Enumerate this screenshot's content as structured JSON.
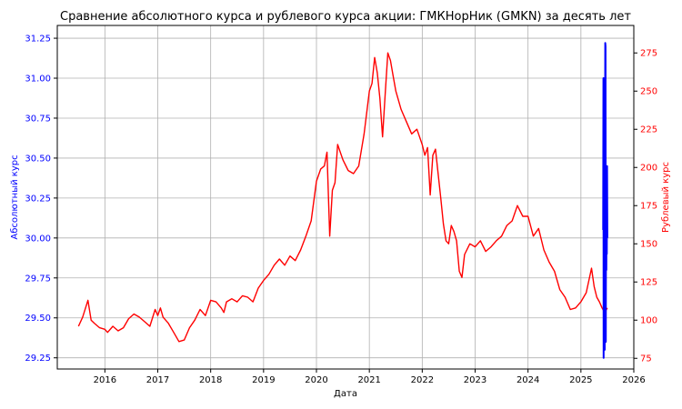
{
  "chart_data": {
    "type": "line",
    "title": "Сравнение абсолютного курса и рублевого курса акции: ГМКНорНик (GMKN) за десять лет",
    "xlabel": "Дата",
    "ylabel_left": "Абсолютный курс",
    "ylabel_right": "Рублевый курс",
    "xlim": [
      2015.1,
      2026.0
    ],
    "ylim_left": [
      29.18,
      31.33
    ],
    "ylim_right": [
      68,
      293
    ],
    "x_ticks": [
      2016,
      2017,
      2018,
      2019,
      2020,
      2021,
      2022,
      2023,
      2024,
      2025,
      2026
    ],
    "y_ticks_left": [
      "29.25",
      "29.50",
      "29.75",
      "30.00",
      "30.25",
      "30.50",
      "30.75",
      "31.00",
      "31.25"
    ],
    "y_ticks_right": [
      75,
      100,
      125,
      150,
      175,
      200,
      225,
      250,
      275
    ],
    "grid": true,
    "series": [
      {
        "name": "",
        "axis": "right",
        "color": "#ff0000",
        "x": [
          2015.5,
          2015.58,
          2015.68,
          2015.74,
          2015.8,
          2015.9,
          2016.0,
          2016.05,
          2016.15,
          2016.25,
          2016.35,
          2016.45,
          2016.55,
          2016.65,
          2016.75,
          2016.85,
          2016.95,
          2017.0,
          2017.05,
          2017.1,
          2017.2,
          2017.3,
          2017.4,
          2017.5,
          2017.6,
          2017.7,
          2017.8,
          2017.9,
          2018.0,
          2018.1,
          2018.2,
          2018.25,
          2018.3,
          2018.4,
          2018.5,
          2018.6,
          2018.7,
          2018.8,
          2018.9,
          2019.0,
          2019.1,
          2019.2,
          2019.3,
          2019.4,
          2019.5,
          2019.6,
          2019.7,
          2019.8,
          2019.9,
          2020.0,
          2020.08,
          2020.15,
          2020.2,
          2020.25,
          2020.3,
          2020.35,
          2020.4,
          2020.5,
          2020.6,
          2020.7,
          2020.8,
          2020.9,
          2021.0,
          2021.05,
          2021.1,
          2021.15,
          2021.2,
          2021.25,
          2021.3,
          2021.35,
          2021.4,
          2021.45,
          2021.5,
          2021.6,
          2021.7,
          2021.8,
          2021.9,
          2022.0,
          2022.05,
          2022.1,
          2022.15,
          2022.2,
          2022.25,
          2022.3,
          2022.35,
          2022.4,
          2022.45,
          2022.5,
          2022.55,
          2022.6,
          2022.65,
          2022.7,
          2022.75,
          2022.8,
          2022.9,
          2023.0,
          2023.1,
          2023.2,
          2023.3,
          2023.4,
          2023.5,
          2023.6,
          2023.7,
          2023.8,
          2023.9,
          2024.0,
          2024.1,
          2024.2,
          2024.3,
          2024.4,
          2024.5,
          2024.6,
          2024.7,
          2024.8,
          2024.9,
          2025.0,
          2025.1,
          2025.2,
          2025.25,
          2025.3,
          2025.35,
          2025.4,
          2025.45,
          2025.5
        ],
        "values": [
          96,
          102,
          113,
          100,
          98,
          95,
          94,
          92,
          96,
          93,
          95,
          101,
          104,
          102,
          99,
          96,
          107,
          103,
          108,
          102,
          98,
          92,
          86,
          87,
          95,
          100,
          107,
          103,
          113,
          112,
          108,
          105,
          112,
          114,
          112,
          116,
          115,
          112,
          121,
          126,
          130,
          136,
          140,
          136,
          142,
          139,
          146,
          155,
          165,
          191,
          199,
          201,
          210,
          155,
          185,
          190,
          215,
          205,
          198,
          196,
          201,
          222,
          250,
          255,
          272,
          262,
          245,
          220,
          248,
          275,
          270,
          260,
          250,
          238,
          230,
          222,
          225,
          215,
          208,
          213,
          182,
          208,
          212,
          196,
          180,
          163,
          152,
          150,
          162,
          158,
          152,
          132,
          128,
          143,
          150,
          148,
          152,
          145,
          148,
          152,
          155,
          162,
          165,
          175,
          168,
          168,
          155,
          160,
          146,
          138,
          132,
          120,
          115,
          107,
          108,
          112,
          118,
          134,
          122,
          115,
          112,
          108,
          105,
          108
        ]
      },
      {
        "name": "",
        "axis": "left",
        "color": "#0000ff",
        "x": [
          2025.42,
          2025.425,
          2025.43,
          2025.435,
          2025.44,
          2025.445,
          2025.45,
          2025.455,
          2025.46,
          2025.465,
          2025.47,
          2025.475,
          2025.48,
          2025.485,
          2025.49,
          2025.495,
          2025.5
        ],
        "values": [
          30.05,
          31.0,
          29.25,
          30.3,
          29.35,
          31.0,
          29.3,
          30.2,
          31.22,
          31.2,
          29.35,
          30.4,
          29.8,
          30.45,
          29.9,
          30.45,
          30.0
        ]
      }
    ]
  }
}
